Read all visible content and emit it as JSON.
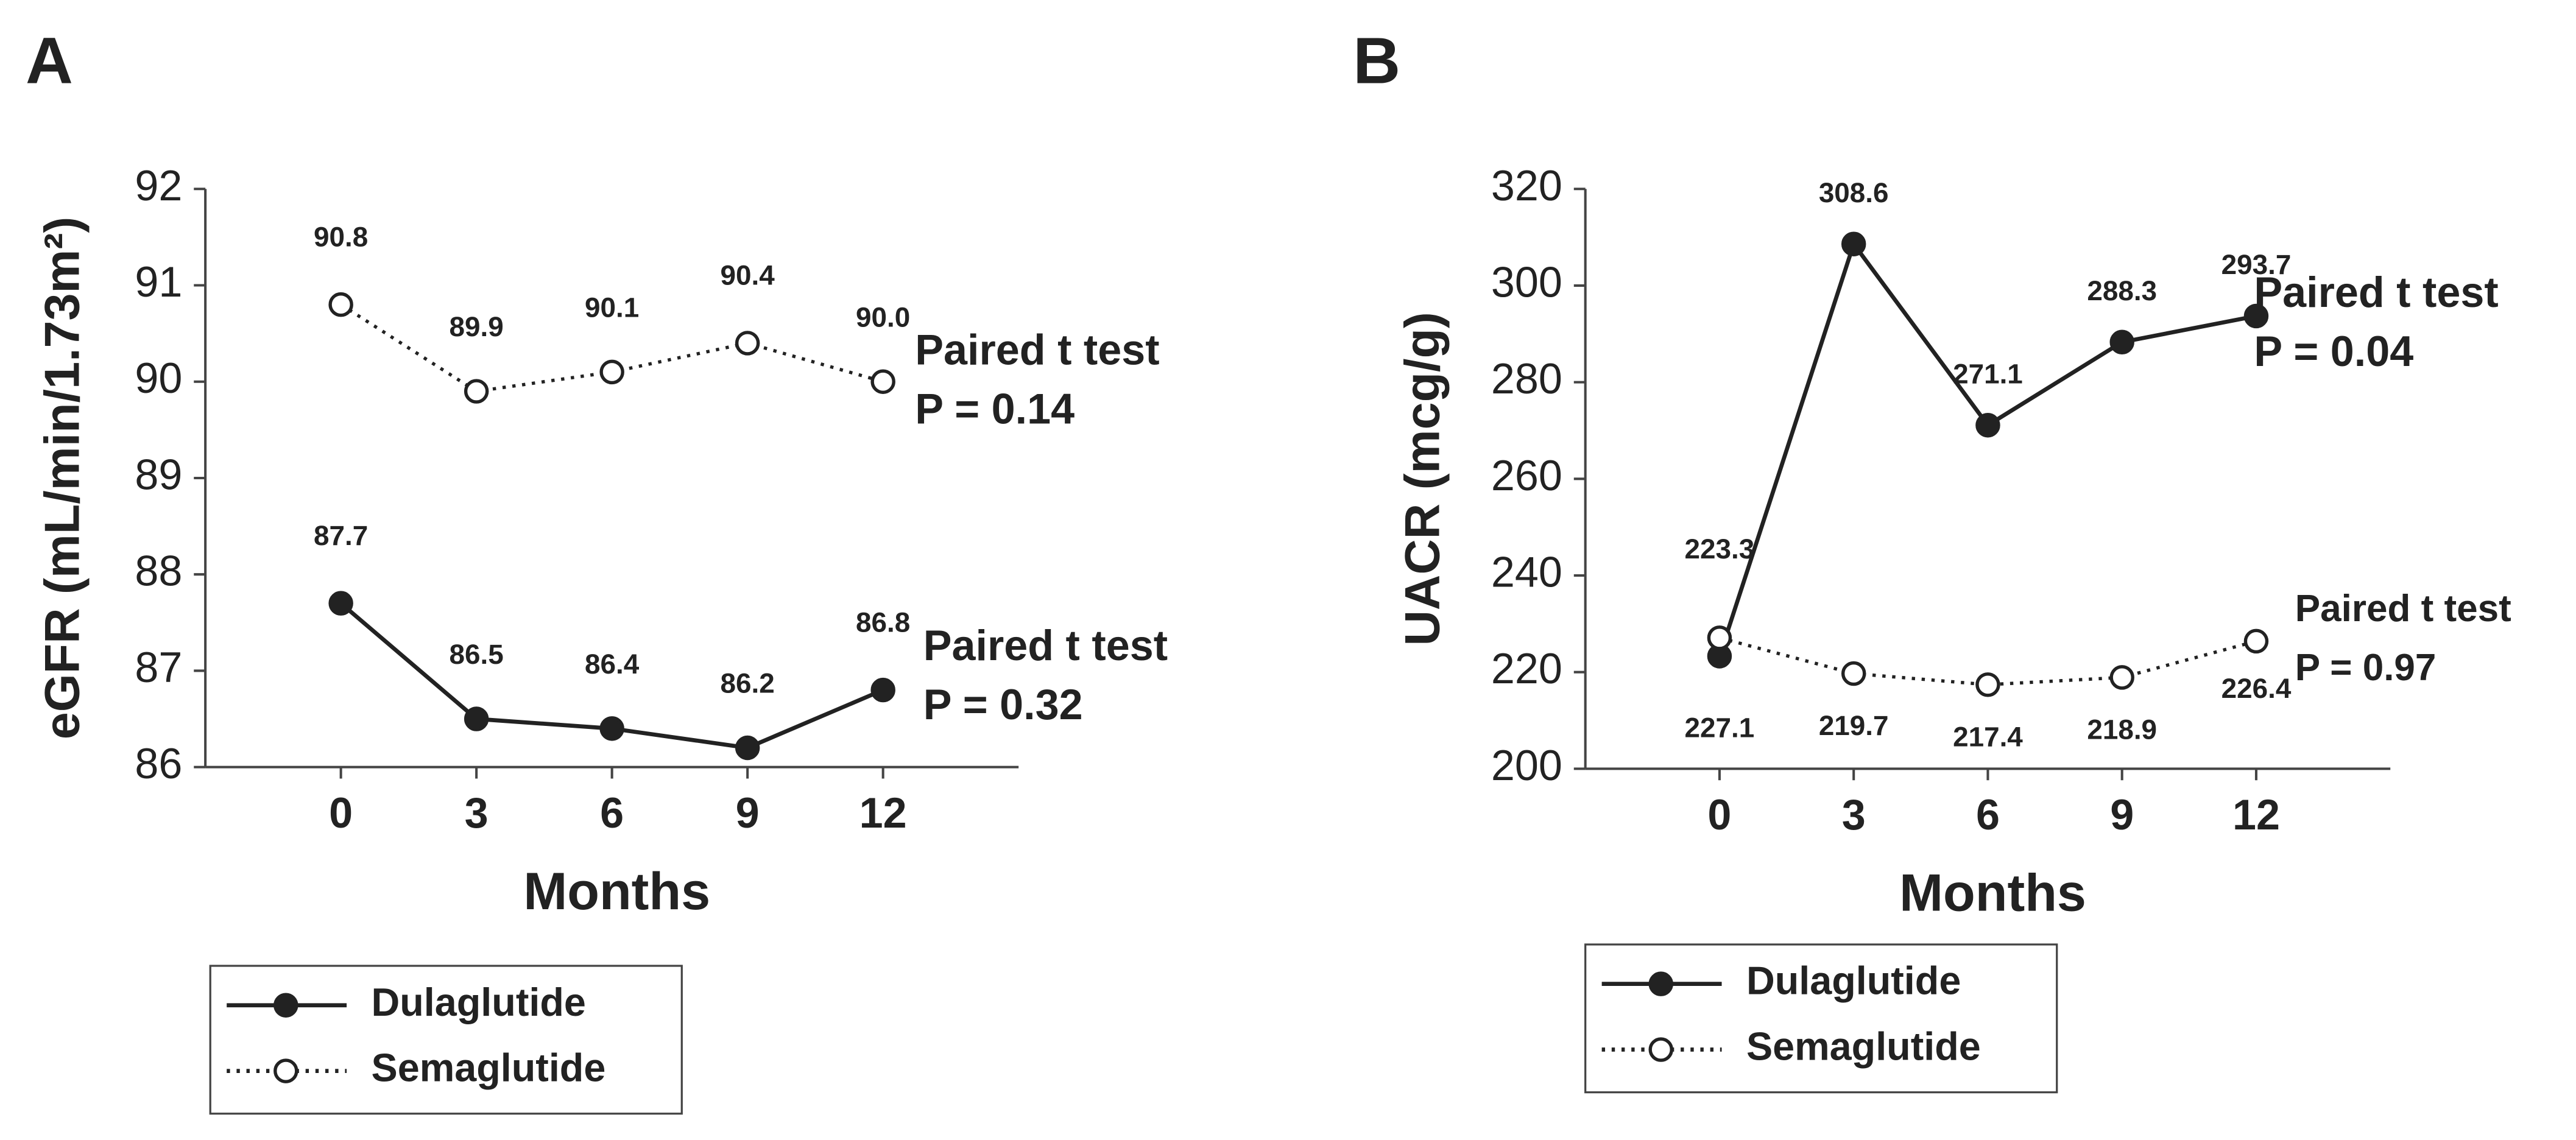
{
  "chart_data": [
    {
      "type": "line",
      "panel": "A",
      "ylabel": "eGFR (mL/min/1.73m²)",
      "xlabel": "Months",
      "x": [
        0,
        3,
        6,
        9,
        12
      ],
      "xlim": [
        -3,
        15
      ],
      "xticks": [
        0,
        3,
        6,
        9,
        12
      ],
      "ylim": [
        86,
        92
      ],
      "yticks": [
        86,
        87,
        88,
        89,
        90,
        91,
        92
      ],
      "series": [
        {
          "name": "Dulaglutide",
          "color": "#222222",
          "marker_fill": "#222222",
          "line_style": "solid",
          "values": [
            87.7,
            86.5,
            86.4,
            86.2,
            86.8
          ],
          "value_labels": [
            "87.7",
            "86.5",
            "86.4",
            "86.2",
            "86.8"
          ]
        },
        {
          "name": "Semaglutide",
          "color": "#222222",
          "marker_fill": "#ffffff",
          "line_style": "dotted",
          "values": [
            90.8,
            89.9,
            90.1,
            90.4,
            90.0
          ],
          "value_labels": [
            "90.8",
            "89.9",
            "90.1",
            "90.4",
            "90.0"
          ]
        }
      ],
      "annotations": [
        [
          "Paired t test",
          "P = 0.32"
        ],
        [
          "Paired t test",
          "P = 0.14"
        ]
      ]
    },
    {
      "type": "line",
      "panel": "B",
      "ylabel": "UACR (mcg/g)",
      "xlabel": "Months",
      "x": [
        0,
        3,
        6,
        9,
        12
      ],
      "xlim": [
        -3,
        15
      ],
      "xticks": [
        0,
        3,
        6,
        9,
        12
      ],
      "ylim": [
        200,
        320
      ],
      "yticks": [
        200,
        220,
        240,
        260,
        280,
        300,
        320
      ],
      "series": [
        {
          "name": "Dulaglutide",
          "color": "#222222",
          "marker_fill": "#222222",
          "line_style": "solid",
          "values": [
            223.3,
            308.6,
            271.1,
            288.3,
            293.7
          ],
          "value_labels": [
            "223.3",
            "308.6",
            "271.1",
            "288.3",
            "293.7"
          ]
        },
        {
          "name": "Semaglutide",
          "color": "#222222",
          "marker_fill": "#ffffff",
          "line_style": "dotted",
          "values": [
            227.1,
            219.7,
            217.4,
            218.9,
            226.4
          ],
          "value_labels": [
            "227.1",
            "219.7",
            "217.4",
            "218.9",
            "226.4"
          ]
        }
      ],
      "annotations": [
        [
          "Paired t test",
          "P = 0.04"
        ],
        [
          "Paired t test",
          "P = 0.97"
        ]
      ]
    }
  ]
}
